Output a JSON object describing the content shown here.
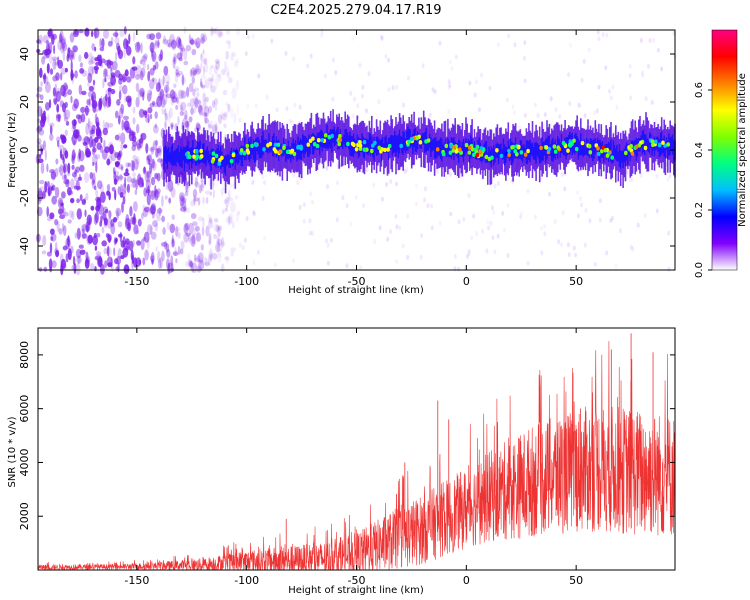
{
  "title": "C2E4.2025.279.04.17.R19",
  "chart_data": [
    {
      "type": "heatmap",
      "name": "spectrogram",
      "xlabel": "Height of straight line (km)",
      "ylabel": "Frequency (Hz)",
      "xlim": [
        -195,
        95
      ],
      "ylim": [
        -50,
        50
      ],
      "xticks": [
        -150,
        -100,
        -50,
        0,
        50
      ],
      "yticks": [
        -40,
        -20,
        0,
        20,
        40
      ],
      "colorbar": {
        "label": "Normalized spectral amplitude",
        "range": [
          0,
          0.8
        ],
        "ticks": [
          0.0,
          0.2,
          0.4,
          0.6
        ],
        "colors": [
          "#ffffff",
          "#8000ff",
          "#0000ff",
          "#00c0ff",
          "#00ff80",
          "#80ff00",
          "#ffff00",
          "#ff8000",
          "#ff0000",
          "#ff0080"
        ]
      },
      "ridge": {
        "description": "coherent signal band near 0 Hz",
        "x_start": -138,
        "center_freq_x": [
          -138,
          -120,
          -110,
          -100,
          -90,
          -80,
          -70,
          -60,
          -50,
          -40,
          -30,
          -20,
          -10,
          0,
          10,
          20,
          30,
          40,
          50,
          60,
          70,
          80,
          92
        ],
        "center_freq_y": [
          -3,
          -2,
          -5,
          0,
          2,
          -1,
          3,
          5,
          2,
          1,
          3,
          4,
          0,
          1,
          -2,
          0,
          -1,
          1,
          2,
          0,
          -3,
          3,
          1
        ],
        "peak_amplitude": 0.75
      },
      "noise_region": {
        "x_range": [
          -195,
          -105
        ],
        "description": "broadband noise scattered over all frequencies"
      }
    },
    {
      "type": "line",
      "name": "snr",
      "xlabel": "Height of straight line (km)",
      "ylabel": "SNR (10 * v/v)",
      "xlim": [
        -195,
        95
      ],
      "ylim": [
        0,
        9000
      ],
      "xticks": [
        -150,
        -100,
        -50,
        0,
        50
      ],
      "yticks": [
        2000,
        4000,
        6000,
        8000
      ],
      "color": "#ee3333",
      "envelope": {
        "x": [
          -195,
          -160,
          -140,
          -120,
          -100,
          -80,
          -60,
          -50,
          -40,
          -30,
          -20,
          -10,
          0,
          10,
          20,
          30,
          40,
          50,
          60,
          70,
          80,
          95
        ],
        "baseline": [
          100,
          120,
          150,
          200,
          300,
          350,
          450,
          600,
          900,
          1200,
          1500,
          1900,
          2300,
          2700,
          3000,
          3300,
          3500,
          3700,
          3800,
          3700,
          3600,
          3500
        ],
        "spread": [
          100,
          100,
          150,
          250,
          450,
          550,
          650,
          800,
          1000,
          1200,
          1300,
          1400,
          1500,
          1700,
          1900,
          2100,
          2200,
          2300,
          2400,
          2400,
          2400,
          2300
        ]
      },
      "notable_peaks": [
        {
          "x": -82,
          "y": 1900
        },
        {
          "x": -28,
          "y": 4000
        },
        {
          "x": -13,
          "y": 6300
        },
        {
          "x": -8,
          "y": 5600
        },
        {
          "x": 52,
          "y": 6000
        },
        {
          "x": 66,
          "y": 8200
        },
        {
          "x": 75,
          "y": 8800
        },
        {
          "x": 85,
          "y": 8100
        }
      ]
    }
  ]
}
